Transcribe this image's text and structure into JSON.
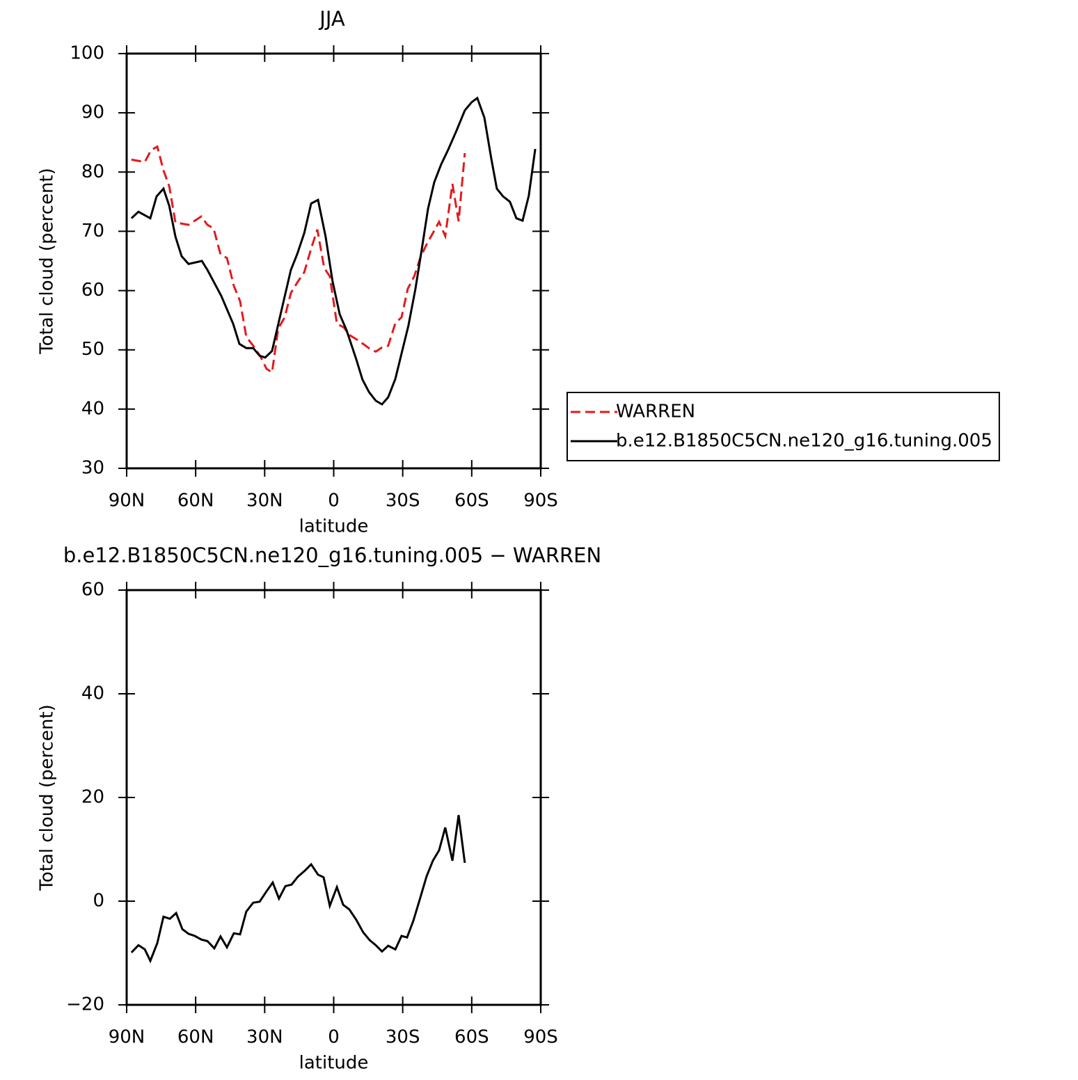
{
  "chart_data": [
    {
      "type": "line",
      "title": "JJA",
      "xlabel": "latitude",
      "ylabel": "Total cloud (percent)",
      "xlim": [
        90,
        -90
      ],
      "xticks": [
        {
          "value": 90,
          "label": "90N"
        },
        {
          "value": 60,
          "label": "60N"
        },
        {
          "value": 30,
          "label": "30N"
        },
        0,
        {
          "value": -30,
          "label": "30S"
        },
        {
          "value": -60,
          "label": "60S"
        },
        {
          "value": -90,
          "label": "90S"
        }
      ],
      "ylim": [
        30,
        100
      ],
      "yticks": [
        30,
        40,
        50,
        60,
        70,
        80,
        90,
        100
      ],
      "legend": "right",
      "series": [
        {
          "name": "WARREN",
          "color": "#e31a1c",
          "linestyle": "dashed",
          "x": [
            87.9,
            82.1,
            79.4,
            76.7,
            74.0,
            71.5,
            68.8,
            63.1,
            57.6,
            54.9,
            52.2,
            49.2,
            46.4,
            43.4,
            40.7,
            38.0,
            35.0,
            31.9,
            29.2,
            26.8,
            24.1,
            21.3,
            18.6,
            15.6,
            12.8,
            9.8,
            7.1,
            4.1,
            1.7,
            -1.4,
            -4.4,
            -6.8,
            -10.2,
            -13.2,
            -15.9,
            -18.3,
            -21.0,
            -23.7,
            -26.8,
            -29.5,
            -32.2,
            -35.0,
            -37.7,
            -40.4,
            -43.1,
            -45.8,
            -48.5,
            -51.6,
            -54.3,
            -57.0
          ],
          "values": [
            82.1,
            81.7,
            83.7,
            84.3,
            80.3,
            77.6,
            71.5,
            71.1,
            72.5,
            71.1,
            70.5,
            66.1,
            65.5,
            60.8,
            58.2,
            52.2,
            50.7,
            48.9,
            46.8,
            46.2,
            53.6,
            55.5,
            59.6,
            61.5,
            63.1,
            67.1,
            70.3,
            63.8,
            62.4,
            54.4,
            53.8,
            52.5,
            51.7,
            50.9,
            50.1,
            49.7,
            50.4,
            50.7,
            54.5,
            55.5,
            60.3,
            62.4,
            65.6,
            67.8,
            69.7,
            71.6,
            69.2,
            78.0,
            71.7,
            83.2
          ]
        },
        {
          "name": "b.e12.B1850C5CN.ne120_g16.tuning.005",
          "color": "#000000",
          "linestyle": "solid",
          "x": [
            87.9,
            84.9,
            79.7,
            77.0,
            74.0,
            71.5,
            68.8,
            66.1,
            63.1,
            57.3,
            54.9,
            48.9,
            43.7,
            41.0,
            38.0,
            35.0,
            32.2,
            29.8,
            26.8,
            21.6,
            18.6,
            15.9,
            12.8,
            9.8,
            6.8,
            3.5,
            0.5,
            -2.6,
            -5.6,
            -9.8,
            -12.5,
            -15.3,
            -18.3,
            -21.0,
            -23.7,
            -26.8,
            -29.2,
            -32.5,
            -35.5,
            -38.3,
            -41.0,
            -43.7,
            -46.7,
            -49.8,
            -53.4,
            -57.0,
            -60.0,
            -62.4,
            -65.5,
            -68.5,
            -70.9,
            -73.6,
            -76.6,
            -79.4,
            -82.1,
            -84.8,
            -87.6
          ],
          "values": [
            72.2,
            73.3,
            72.2,
            75.9,
            77.2,
            74.3,
            69.1,
            65.8,
            64.5,
            65.0,
            63.5,
            59.1,
            54.4,
            51.0,
            50.3,
            50.3,
            49.0,
            48.7,
            49.8,
            58.5,
            63.5,
            66.1,
            69.7,
            74.7,
            75.3,
            69.1,
            61.6,
            56.0,
            53.3,
            48.4,
            45.0,
            42.9,
            41.4,
            40.8,
            42.0,
            45.1,
            48.9,
            54.1,
            60.2,
            67.0,
            73.8,
            78.3,
            81.3,
            83.8,
            87.0,
            90.4,
            91.8,
            92.5,
            89.2,
            82.3,
            77.2,
            75.9,
            75.0,
            72.2,
            71.8,
            76.0,
            83.9
          ]
        }
      ]
    },
    {
      "type": "line",
      "title": "b.e12.B1850C5CN.ne120_g16.tuning.005 − WARREN",
      "xlabel": "latitude",
      "ylabel": "Total cloud (percent)",
      "xlim": [
        90,
        -90
      ],
      "xticks": [
        {
          "value": 90,
          "label": "90N"
        },
        {
          "value": 60,
          "label": "60N"
        },
        {
          "value": 30,
          "label": "30N"
        },
        0,
        {
          "value": -30,
          "label": "30S"
        },
        {
          "value": -60,
          "label": "60S"
        },
        {
          "value": -90,
          "label": "90S"
        }
      ],
      "ylim": [
        -20,
        60
      ],
      "yticks": [
        {
          "value": -20,
          "label": "−20"
        },
        0,
        20,
        40,
        60
      ],
      "series": [
        {
          "color": "#000000",
          "linestyle": "solid",
          "x": [
            87.9,
            84.9,
            82.1,
            79.7,
            76.7,
            74.0,
            71.2,
            68.5,
            65.8,
            63.1,
            60.4,
            57.6,
            54.9,
            51.9,
            49.2,
            46.4,
            43.4,
            40.7,
            38.0,
            35.0,
            32.2,
            29.5,
            26.5,
            23.8,
            21.0,
            18.3,
            15.6,
            12.5,
            9.8,
            6.8,
            4.4,
            1.7,
            -1.4,
            -4.1,
            -6.8,
            -9.8,
            -12.8,
            -15.6,
            -18.3,
            -21.0,
            -23.7,
            -26.8,
            -29.5,
            -31.9,
            -34.6,
            -37.4,
            -40.4,
            -43.1,
            -45.8,
            -48.5,
            -51.6,
            -54.3,
            -57.0
          ],
          "values": [
            -9.9,
            -8.5,
            -9.3,
            -11.5,
            -8.1,
            -3.0,
            -3.4,
            -2.3,
            -5.4,
            -6.3,
            -6.7,
            -7.4,
            -7.7,
            -9.1,
            -6.8,
            -8.9,
            -6.2,
            -6.4,
            -2.0,
            -0.3,
            -0.1,
            1.7,
            3.6,
            0.5,
            2.9,
            3.2,
            4.7,
            5.9,
            7.1,
            5.1,
            4.6,
            -0.9,
            2.7,
            -0.7,
            -1.6,
            -3.6,
            -6.0,
            -7.5,
            -8.5,
            -9.7,
            -8.6,
            -9.3,
            -6.7,
            -7.0,
            -3.8,
            0.3,
            4.8,
            7.8,
            9.8,
            14.2,
            7.8,
            16.6,
            7.4
          ]
        }
      ]
    }
  ]
}
